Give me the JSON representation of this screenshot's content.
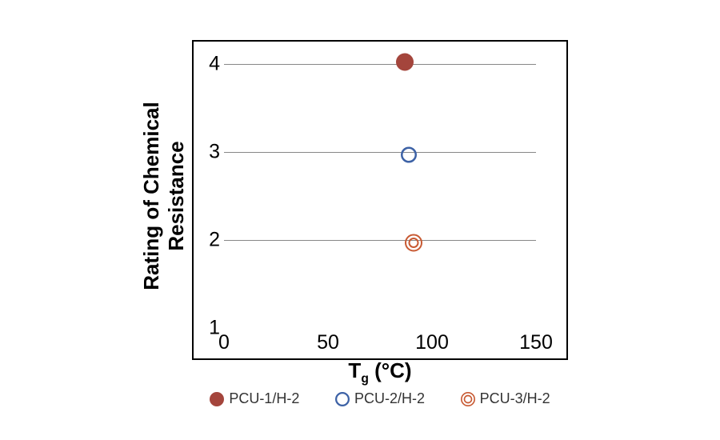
{
  "chart": {
    "type": "scatter",
    "x_axis": {
      "label_html": "T<sub>g</sub> (°C)",
      "min": 0,
      "max": 150,
      "ticks": [
        0,
        50,
        100,
        150
      ],
      "font_size": 25,
      "title_font_size": 26,
      "title_font_weight": 700
    },
    "y_axis": {
      "label": "Rating of Chemical Resistance",
      "min": 1,
      "max": 4,
      "ticks": [
        1,
        2,
        3,
        4
      ],
      "gridlines_at": [
        2,
        3,
        4
      ],
      "font_size": 25,
      "title_font_size": 26,
      "title_font_weight": 700
    },
    "grid_color": "#888888",
    "border_color": "#000000",
    "background_color": "#ffffff",
    "series": [
      {
        "name": "PCU-1/H-2",
        "marker": "circle-filled",
        "color": "#a4453c",
        "size": 22,
        "points": [
          {
            "x": 87,
            "y": 4.0
          }
        ]
      },
      {
        "name": "PCU-2/H-2",
        "marker": "circle-open",
        "color": "#3d62a6",
        "stroke_width": 2.5,
        "size": 20,
        "points": [
          {
            "x": 89,
            "y": 2.95
          }
        ]
      },
      {
        "name": "PCU-3/H-2",
        "marker": "circle-double",
        "color": "#c85a33",
        "stroke_width": 2,
        "size_outer": 22,
        "size_inner": 13,
        "points": [
          {
            "x": 91,
            "y": 1.95
          }
        ]
      }
    ],
    "legend": {
      "font_size": 18,
      "text_color": "#333333",
      "swatch_size": 18
    }
  }
}
